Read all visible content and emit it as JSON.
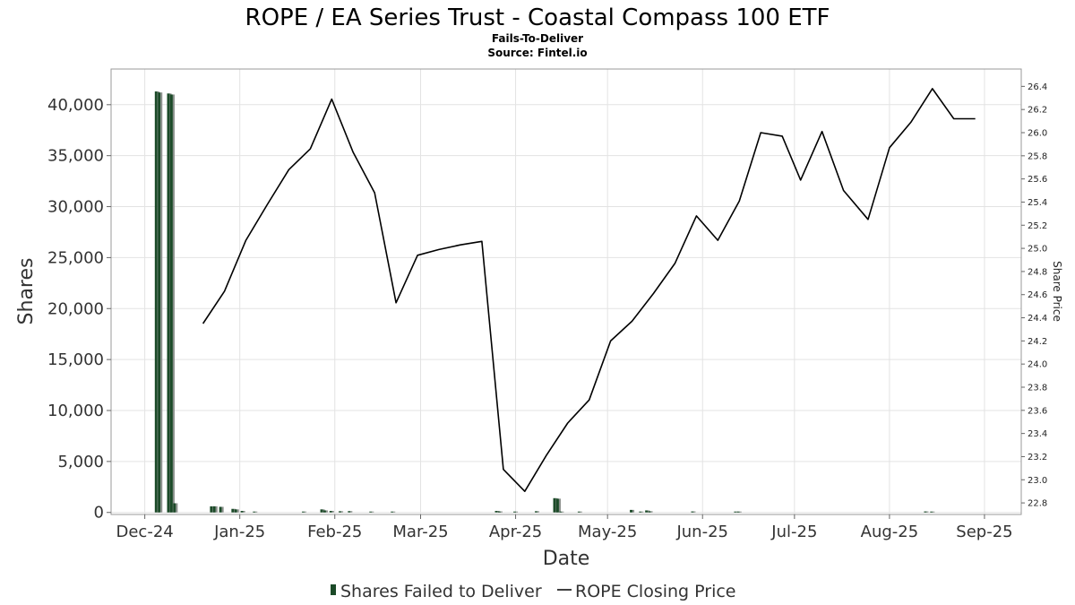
{
  "chart_data": {
    "type": "bar+line",
    "title": "ROPE / EA Series Trust - Coastal Compass 100 ETF",
    "subtitle_lines": [
      "Fails-To-Deliver",
      "Source: Fintel.io"
    ],
    "xlabel": "Date",
    "ylabel": "Shares",
    "ylabel_right": "Share Price",
    "x_tick_labels": [
      "Dec-24",
      "Jan-25",
      "Feb-25",
      "Mar-25",
      "Apr-25",
      "May-25",
      "Jun-25",
      "Jul-25",
      "Aug-25",
      "Sep-25"
    ],
    "x_tick_dates": [
      "2024-12-01",
      "2025-01-01",
      "2025-02-01",
      "2025-03-01",
      "2025-04-01",
      "2025-05-01",
      "2025-06-01",
      "2025-07-01",
      "2025-08-01",
      "2025-09-01"
    ],
    "xlim": [
      "2024-11-20",
      "2025-09-13"
    ],
    "y_ticks": [
      0,
      5000,
      10000,
      15000,
      20000,
      25000,
      30000,
      35000,
      40000
    ],
    "y_tick_labels": [
      "0",
      "5,000",
      "10,000",
      "15,000",
      "20,000",
      "25,000",
      "30,000",
      "35,000",
      "40,000"
    ],
    "ylim": [
      -200,
      43500
    ],
    "y_right_ticks": [
      22.8,
      23.0,
      23.2,
      23.4,
      23.6,
      23.8,
      24.0,
      24.2,
      24.4,
      24.6,
      24.8,
      25.0,
      25.2,
      25.4,
      25.6,
      25.8,
      26.0,
      26.2,
      26.4
    ],
    "y_right_tick_labels": [
      "22.8",
      "23.0",
      "23.2",
      "23.4",
      "23.6",
      "23.8",
      "24.0",
      "24.2",
      "24.4",
      "24.6",
      "24.8",
      "25.0",
      "25.2",
      "25.4",
      "25.6",
      "25.8",
      "26.0",
      "26.2",
      "26.4"
    ],
    "ylim_right": [
      22.7,
      26.55
    ],
    "grid": true,
    "legend_position": "bottom-center",
    "series": [
      {
        "name": "Shares Failed to Deliver",
        "kind": "bar",
        "axis": "left",
        "color": "#1b4a28",
        "points": [
          {
            "x": "2024-12-05",
            "y": 41300
          },
          {
            "x": "2024-12-06",
            "y": 41200
          },
          {
            "x": "2024-12-09",
            "y": 41100
          },
          {
            "x": "2024-12-10",
            "y": 41000
          },
          {
            "x": "2024-12-11",
            "y": 900
          },
          {
            "x": "2024-12-23",
            "y": 600
          },
          {
            "x": "2024-12-24",
            "y": 600
          },
          {
            "x": "2024-12-26",
            "y": 550
          },
          {
            "x": "2024-12-30",
            "y": 350
          },
          {
            "x": "2024-12-31",
            "y": 300
          },
          {
            "x": "2025-01-02",
            "y": 150
          },
          {
            "x": "2025-01-06",
            "y": 60
          },
          {
            "x": "2025-01-22",
            "y": 80
          },
          {
            "x": "2025-01-28",
            "y": 300
          },
          {
            "x": "2025-01-29",
            "y": 200
          },
          {
            "x": "2025-01-31",
            "y": 150
          },
          {
            "x": "2025-02-03",
            "y": 120
          },
          {
            "x": "2025-02-06",
            "y": 130
          },
          {
            "x": "2025-02-13",
            "y": 60
          },
          {
            "x": "2025-02-20",
            "y": 50
          },
          {
            "x": "2025-03-26",
            "y": 150
          },
          {
            "x": "2025-03-27",
            "y": 100
          },
          {
            "x": "2025-04-01",
            "y": 60
          },
          {
            "x": "2025-04-08",
            "y": 120
          },
          {
            "x": "2025-04-14",
            "y": 1400
          },
          {
            "x": "2025-04-15",
            "y": 1350
          },
          {
            "x": "2025-04-16",
            "y": 80
          },
          {
            "x": "2025-04-22",
            "y": 60
          },
          {
            "x": "2025-05-09",
            "y": 250
          },
          {
            "x": "2025-05-12",
            "y": 80
          },
          {
            "x": "2025-05-14",
            "y": 200
          },
          {
            "x": "2025-05-15",
            "y": 120
          },
          {
            "x": "2025-05-29",
            "y": 100
          },
          {
            "x": "2025-06-12",
            "y": 80
          },
          {
            "x": "2025-06-13",
            "y": 60
          },
          {
            "x": "2025-08-13",
            "y": 100
          },
          {
            "x": "2025-08-15",
            "y": 80
          }
        ]
      },
      {
        "name": "ROPE Closing Price",
        "kind": "line",
        "axis": "right",
        "color": "#000000",
        "points": [
          {
            "x": "2024-12-20",
            "y": 24.35
          },
          {
            "x": "2024-12-27",
            "y": 24.63
          },
          {
            "x": "2025-01-03",
            "y": 25.07
          },
          {
            "x": "2025-01-10",
            "y": 25.38
          },
          {
            "x": "2025-01-17",
            "y": 25.68
          },
          {
            "x": "2025-01-24",
            "y": 25.86
          },
          {
            "x": "2025-01-31",
            "y": 26.29
          },
          {
            "x": "2025-02-07",
            "y": 25.83
          },
          {
            "x": "2025-02-14",
            "y": 25.48
          },
          {
            "x": "2025-02-21",
            "y": 24.53
          },
          {
            "x": "2025-02-28",
            "y": 24.94
          },
          {
            "x": "2025-03-07",
            "y": 24.99
          },
          {
            "x": "2025-03-14",
            "y": 25.03
          },
          {
            "x": "2025-03-21",
            "y": 25.06
          },
          {
            "x": "2025-03-28",
            "y": 23.09
          },
          {
            "x": "2025-04-04",
            "y": 22.9
          },
          {
            "x": "2025-04-11",
            "y": 23.21
          },
          {
            "x": "2025-04-18",
            "y": 23.49
          },
          {
            "x": "2025-04-25",
            "y": 23.69
          },
          {
            "x": "2025-05-02",
            "y": 24.2
          },
          {
            "x": "2025-05-09",
            "y": 24.37
          },
          {
            "x": "2025-05-16",
            "y": 24.61
          },
          {
            "x": "2025-05-23",
            "y": 24.87
          },
          {
            "x": "2025-05-30",
            "y": 25.28
          },
          {
            "x": "2025-06-06",
            "y": 25.07
          },
          {
            "x": "2025-06-13",
            "y": 25.41
          },
          {
            "x": "2025-06-20",
            "y": 26.0
          },
          {
            "x": "2025-06-27",
            "y": 25.97
          },
          {
            "x": "2025-07-03",
            "y": 25.59
          },
          {
            "x": "2025-07-10",
            "y": 26.01
          },
          {
            "x": "2025-07-17",
            "y": 25.5
          },
          {
            "x": "2025-07-25",
            "y": 25.25
          },
          {
            "x": "2025-08-01",
            "y": 25.87
          },
          {
            "x": "2025-08-08",
            "y": 26.09
          },
          {
            "x": "2025-08-15",
            "y": 26.38
          },
          {
            "x": "2025-08-22",
            "y": 26.12
          },
          {
            "x": "2025-08-29",
            "y": 26.12
          }
        ]
      }
    ]
  }
}
